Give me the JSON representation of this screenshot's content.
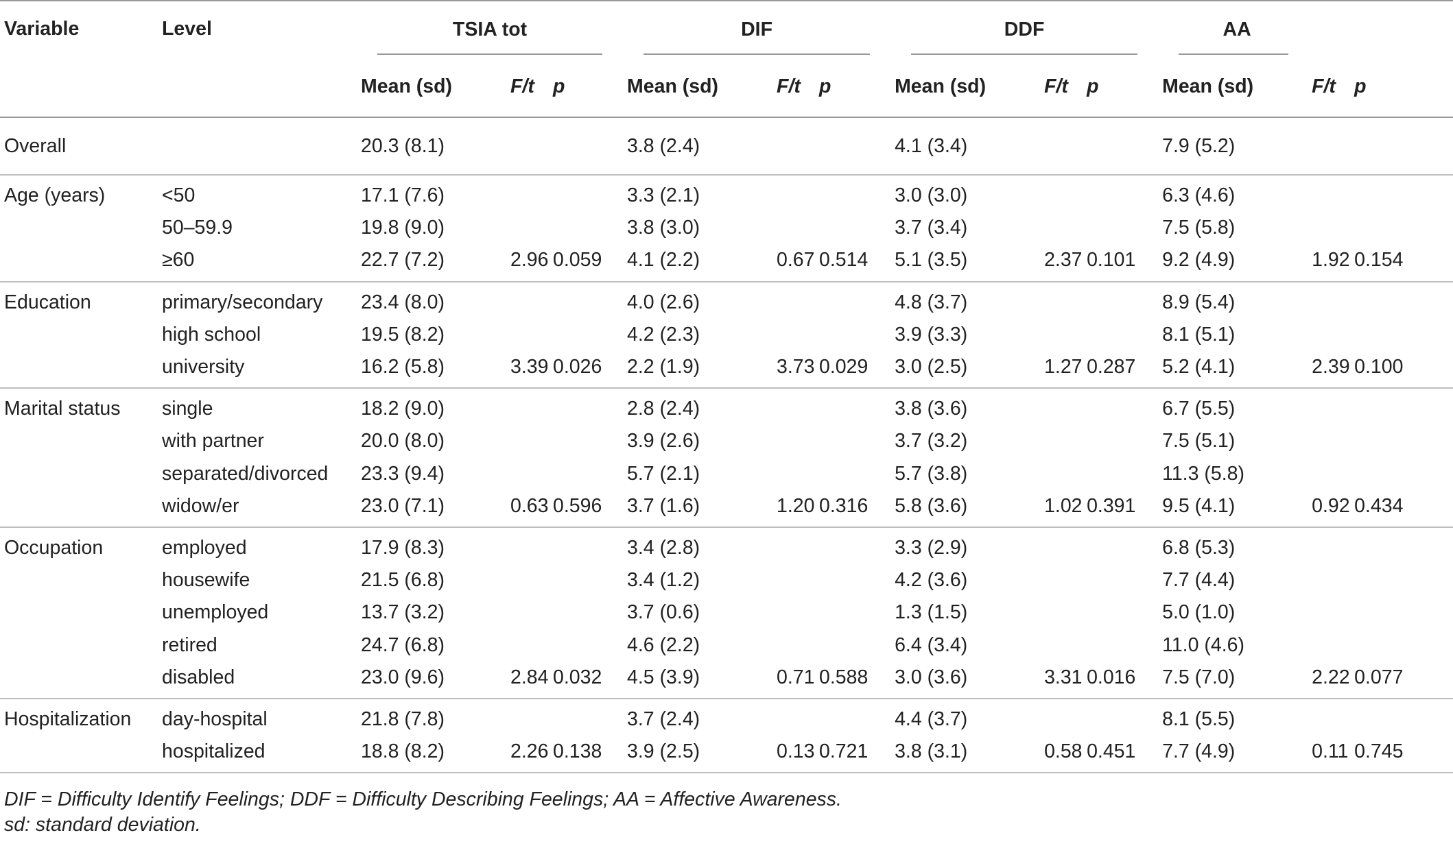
{
  "headers": {
    "variable": "Variable",
    "level": "Level",
    "groups": [
      "TSIA tot",
      "DIF",
      "DDF",
      "AA"
    ],
    "sub": [
      "Mean (sd)",
      "F/t",
      "p"
    ]
  },
  "rows": [
    {
      "variable": "Overall",
      "level": "",
      "tsia": "20.3 (8.1)",
      "tsia_f": "",
      "tsia_p": "",
      "dif": "3.8 (2.4)",
      "dif_f": "",
      "dif_p": "",
      "ddf": "4.1 (3.4)",
      "ddf_f": "",
      "ddf_p": "",
      "aa": "7.9 (5.2)",
      "aa_f": "",
      "aa_p": ""
    },
    {
      "variable": "Age (years)",
      "level": "<50",
      "tsia": "17.1 (7.6)",
      "tsia_f": "",
      "tsia_p": "",
      "dif": "3.3 (2.1)",
      "dif_f": "",
      "dif_p": "",
      "ddf": "3.0 (3.0)",
      "ddf_f": "",
      "ddf_p": "",
      "aa": "6.3 (4.6)",
      "aa_f": "",
      "aa_p": ""
    },
    {
      "variable": "",
      "level": "50–59.9",
      "tsia": "19.8 (9.0)",
      "tsia_f": "",
      "tsia_p": "",
      "dif": "3.8 (3.0)",
      "dif_f": "",
      "dif_p": "",
      "ddf": "3.7 (3.4)",
      "ddf_f": "",
      "ddf_p": "",
      "aa": "7.5 (5.8)",
      "aa_f": "",
      "aa_p": ""
    },
    {
      "variable": "",
      "level": "≥60",
      "tsia": "22.7 (7.2)",
      "tsia_f": "2.96",
      "tsia_p": "0.059",
      "dif": "4.1 (2.2)",
      "dif_f": "0.67",
      "dif_p": "0.514",
      "ddf": "5.1 (3.5)",
      "ddf_f": "2.37",
      "ddf_p": "0.101",
      "aa": "9.2 (4.9)",
      "aa_f": "1.92",
      "aa_p": "0.154"
    },
    {
      "variable": "Education",
      "level": "primary/secondary",
      "tsia": "23.4 (8.0)",
      "tsia_f": "",
      "tsia_p": "",
      "dif": "4.0 (2.6)",
      "dif_f": "",
      "dif_p": "",
      "ddf": "4.8 (3.7)",
      "ddf_f": "",
      "ddf_p": "",
      "aa": "8.9 (5.4)",
      "aa_f": "",
      "aa_p": ""
    },
    {
      "variable": "",
      "level": "high school",
      "tsia": "19.5 (8.2)",
      "tsia_f": "",
      "tsia_p": "",
      "dif": "4.2 (2.3)",
      "dif_f": "",
      "dif_p": "",
      "ddf": "3.9 (3.3)",
      "ddf_f": "",
      "ddf_p": "",
      "aa": "8.1 (5.1)",
      "aa_f": "",
      "aa_p": ""
    },
    {
      "variable": "",
      "level": "university",
      "tsia": "16.2 (5.8)",
      "tsia_f": "3.39",
      "tsia_p": "0.026",
      "dif": "2.2 (1.9)",
      "dif_f": "3.73",
      "dif_p": "0.029",
      "ddf": "3.0 (2.5)",
      "ddf_f": "1.27",
      "ddf_p": "0.287",
      "aa": "5.2 (4.1)",
      "aa_f": "2.39",
      "aa_p": "0.100"
    },
    {
      "variable": "Marital status",
      "level": "single",
      "tsia": "18.2 (9.0)",
      "tsia_f": "",
      "tsia_p": "",
      "dif": "2.8 (2.4)",
      "dif_f": "",
      "dif_p": "",
      "ddf": "3.8 (3.6)",
      "ddf_f": "",
      "ddf_p": "",
      "aa": "6.7 (5.5)",
      "aa_f": "",
      "aa_p": ""
    },
    {
      "variable": "",
      "level": "with partner",
      "tsia": "20.0 (8.0)",
      "tsia_f": "",
      "tsia_p": "",
      "dif": "3.9 (2.6)",
      "dif_f": "",
      "dif_p": "",
      "ddf": "3.7 (3.2)",
      "ddf_f": "",
      "ddf_p": "",
      "aa": "7.5 (5.1)",
      "aa_f": "",
      "aa_p": ""
    },
    {
      "variable": "",
      "level": "separated/divorced",
      "tsia": "23.3 (9.4)",
      "tsia_f": "",
      "tsia_p": "",
      "dif": "5.7 (2.1)",
      "dif_f": "",
      "dif_p": "",
      "ddf": "5.7 (3.8)",
      "ddf_f": "",
      "ddf_p": "",
      "aa": "11.3 (5.8)",
      "aa_f": "",
      "aa_p": ""
    },
    {
      "variable": "",
      "level": "widow/er",
      "tsia": "23.0 (7.1)",
      "tsia_f": "0.63",
      "tsia_p": "0.596",
      "dif": "3.7 (1.6)",
      "dif_f": "1.20",
      "dif_p": "0.316",
      "ddf": "5.8 (3.6)",
      "ddf_f": "1.02",
      "ddf_p": "0.391",
      "aa": "9.5 (4.1)",
      "aa_f": "0.92",
      "aa_p": "0.434"
    },
    {
      "variable": "Occupation",
      "level": "employed",
      "tsia": "17.9 (8.3)",
      "tsia_f": "",
      "tsia_p": "",
      "dif": "3.4 (2.8)",
      "dif_f": "",
      "dif_p": "",
      "ddf": "3.3 (2.9)",
      "ddf_f": "",
      "ddf_p": "",
      "aa": "6.8 (5.3)",
      "aa_f": "",
      "aa_p": ""
    },
    {
      "variable": "",
      "level": "housewife",
      "tsia": "21.5 (6.8)",
      "tsia_f": "",
      "tsia_p": "",
      "dif": "3.4 (1.2)",
      "dif_f": "",
      "dif_p": "",
      "ddf": "4.2 (3.6)",
      "ddf_f": "",
      "ddf_p": "",
      "aa": "7.7 (4.4)",
      "aa_f": "",
      "aa_p": ""
    },
    {
      "variable": "",
      "level": "unemployed",
      "tsia": "13.7 (3.2)",
      "tsia_f": "",
      "tsia_p": "",
      "dif": "3.7 (0.6)",
      "dif_f": "",
      "dif_p": "",
      "ddf": "1.3 (1.5)",
      "ddf_f": "",
      "ddf_p": "",
      "aa": "5.0 (1.0)",
      "aa_f": "",
      "aa_p": ""
    },
    {
      "variable": "",
      "level": "retired",
      "tsia": "24.7 (6.8)",
      "tsia_f": "",
      "tsia_p": "",
      "dif": "4.6 (2.2)",
      "dif_f": "",
      "dif_p": "",
      "ddf": "6.4 (3.4)",
      "ddf_f": "",
      "ddf_p": "",
      "aa": "11.0 (4.6)",
      "aa_f": "",
      "aa_p": ""
    },
    {
      "variable": "",
      "level": "disabled",
      "tsia": "23.0 (9.6)",
      "tsia_f": "2.84",
      "tsia_p": "0.032",
      "dif": "4.5 (3.9)",
      "dif_f": "0.71",
      "dif_p": "0.588",
      "ddf": "3.0 (3.6)",
      "ddf_f": "3.31",
      "ddf_p": "0.016",
      "aa": "7.5 (7.0)",
      "aa_f": "2.22",
      "aa_p": "0.077"
    },
    {
      "variable": "Hospitalization",
      "level": "day-hospital",
      "tsia": "21.8 (7.8)",
      "tsia_f": "",
      "tsia_p": "",
      "dif": "3.7 (2.4)",
      "dif_f": "",
      "dif_p": "",
      "ddf": "4.4 (3.7)",
      "ddf_f": "",
      "ddf_p": "",
      "aa": "8.1 (5.5)",
      "aa_f": "",
      "aa_p": ""
    },
    {
      "variable": "",
      "level": "hospitalized",
      "tsia": "18.8 (8.2)",
      "tsia_f": "2.26",
      "tsia_p": "0.138",
      "dif": "3.9 (2.5)",
      "dif_f": "0.13",
      "dif_p": "0.721",
      "ddf": "3.8 (3.1)",
      "ddf_f": "0.58",
      "ddf_p": "0.451",
      "aa": "7.7 (4.9)",
      "aa_f": "0.11",
      "aa_p": "0.745"
    }
  ],
  "notes": [
    "DIF = Difficulty Identify Feelings; DDF = Difficulty Describing Feelings; AA = Affective Awareness.",
    "sd: standard deviation."
  ]
}
